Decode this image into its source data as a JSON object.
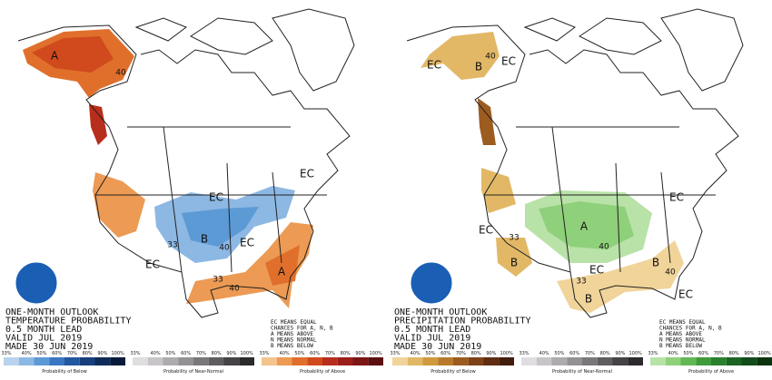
{
  "maps": [
    {
      "title_lines": [
        "ONE-MONTH OUTLOOK",
        "TEMPERATURE PROBABILITY",
        "0.5 MONTH LEAD",
        "VALID JUL 2019",
        "MADE 30 JUN 2019"
      ],
      "note_lines": [
        "EC MEANS EQUAL",
        "CHANCES FOR A, N, B",
        "A MEANS ABOVE",
        "N MEANS NORMAL",
        "B MEANS BELOW"
      ],
      "labels": [
        "A",
        "40",
        "EC",
        "EC",
        "B",
        "33",
        "40",
        "EC",
        "EC",
        "A",
        "33",
        "40"
      ],
      "legend": [
        {
          "caption": "Probability of Below",
          "ticks": [
            "33%",
            "40%",
            "50%",
            "60%",
            "70%",
            "80%",
            "90%",
            "100%"
          ],
          "colors": [
            "#b9d3ee",
            "#8db8e4",
            "#5c9ad6",
            "#3a76c2",
            "#2357a0",
            "#173f7c",
            "#0e2b5a",
            "#071a3a"
          ]
        },
        {
          "caption": "Probability of Near-Normal",
          "ticks": [
            "33%",
            "40%",
            "50%",
            "60%",
            "70%",
            "80%",
            "90%",
            "100%"
          ],
          "colors": [
            "#e0dde0",
            "#c8c5c8",
            "#aeabae",
            "#949194",
            "#7a777a",
            "#605d60",
            "#464346",
            "#2c2a2c"
          ]
        },
        {
          "caption": "Probability of Above",
          "ticks": [
            "33%",
            "40%",
            "50%",
            "60%",
            "70%",
            "80%",
            "90%",
            "100%"
          ],
          "colors": [
            "#f3c48e",
            "#ec9a54",
            "#e06f2c",
            "#d04a1e",
            "#b82e1c",
            "#9a1f1a",
            "#7c1616",
            "#5c0e10"
          ]
        }
      ]
    },
    {
      "title_lines": [
        "ONE-MONTH OUTLOOK",
        "PRECIPITATION PROBABILITY",
        "0.5 MONTH LEAD",
        "VALID JUL 2019",
        "MADE 30 JUN 2019"
      ],
      "note_lines": [
        "EC MEANS EQUAL",
        "CHANCES FOR A, N, B",
        "A MEANS ABOVE",
        "N MEANS NORMAL",
        "B MEANS BELOW"
      ],
      "labels": [
        "B",
        "40",
        "EC",
        "EC",
        "EC",
        "A",
        "40",
        "33",
        "B",
        "EC",
        "B",
        "40",
        "33",
        "B",
        "EC",
        "EC"
      ],
      "legend": [
        {
          "caption": "Probability of Below",
          "ticks": [
            "33%",
            "40%",
            "50%",
            "60%",
            "70%",
            "80%",
            "90%",
            "100%"
          ],
          "colors": [
            "#f0d49a",
            "#e2b866",
            "#cf9a3e",
            "#b87a2a",
            "#9c5c20",
            "#7e4218",
            "#602c12",
            "#421c0c"
          ]
        },
        {
          "caption": "Probability of Near-Normal",
          "ticks": [
            "33%",
            "40%",
            "50%",
            "60%",
            "70%",
            "80%",
            "90%",
            "100%"
          ],
          "colors": [
            "#e0dde0",
            "#c8c5c8",
            "#aeabae",
            "#949194",
            "#7a777a",
            "#605d60",
            "#464346",
            "#2c2a2c"
          ]
        },
        {
          "caption": "Probability of Above",
          "ticks": [
            "33%",
            "40%",
            "50%",
            "60%",
            "70%",
            "80%",
            "90%",
            "100%"
          ],
          "colors": [
            "#b9e2a8",
            "#8fd07a",
            "#62b855",
            "#3f9c3c",
            "#2a802e",
            "#1c6524",
            "#124c1a",
            "#0a3410"
          ]
        }
      ]
    }
  ]
}
